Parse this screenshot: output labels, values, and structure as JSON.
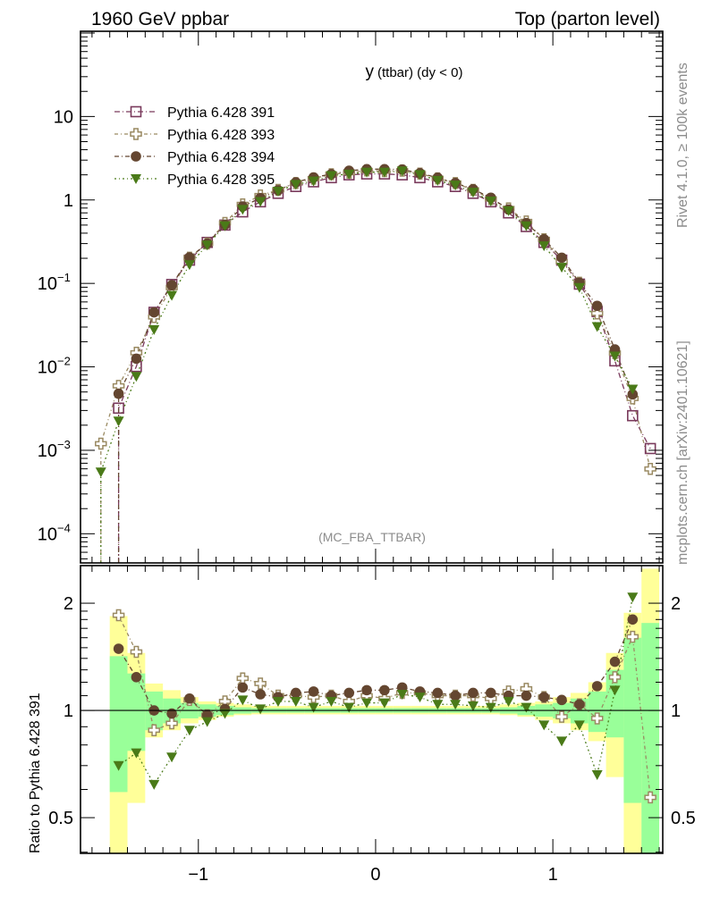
{
  "header": {
    "left": "1960 GeV ppbar",
    "right": "Top (parton level)",
    "side_top": "Rivet 4.1.0, ≥ 100k events",
    "side_bottom": "mcplots.cern.ch [arXiv:2401.10621]",
    "analysis": "(MC_FBA_TTBAR)"
  },
  "chart_data": {
    "type": "line",
    "title_main": "y",
    "title_sub": "(ttbar) (dy < 0)",
    "xlim": [
      -1.665,
      1.62
    ],
    "bin_edges_range": [
      -1.6,
      1.6
    ],
    "x": [
      -1.55,
      -1.45,
      -1.35,
      -1.25,
      -1.15,
      -1.05,
      -0.95,
      -0.85,
      -0.75,
      -0.65,
      -0.55,
      -0.45,
      -0.35,
      -0.25,
      -0.15,
      -0.05,
      0.05,
      0.15,
      0.25,
      0.35,
      0.45,
      0.55,
      0.65,
      0.75,
      0.85,
      0.95,
      1.05,
      1.15,
      1.25,
      1.35,
      1.45,
      1.55
    ],
    "x_ticks": [
      {
        "v": -1,
        "label": "−1"
      },
      {
        "v": 0,
        "label": "0"
      },
      {
        "v": 1,
        "label": "1"
      }
    ],
    "main": {
      "yscale": "log",
      "ylim": [
        4.47e-05,
        105
      ],
      "y_ticks": [
        {
          "v": 10,
          "base": "10",
          "exp": ""
        },
        {
          "v": 1,
          "base": "1",
          "exp": ""
        },
        {
          "v": 0.1,
          "base": "10",
          "exp": "−1"
        },
        {
          "v": 0.01,
          "base": "10",
          "exp": "−2"
        },
        {
          "v": 0.001,
          "base": "10",
          "exp": "−3"
        },
        {
          "v": 0.0001,
          "base": "10",
          "exp": "−4"
        }
      ],
      "reference_values": [
        null,
        0.0032,
        0.0101,
        0.045,
        0.097,
        0.19,
        0.31,
        0.5,
        0.72,
        0.95,
        1.2,
        1.45,
        1.65,
        1.85,
        2.0,
        2.05,
        2.05,
        2.0,
        1.85,
        1.65,
        1.45,
        1.2,
        0.95,
        0.7,
        0.48,
        0.31,
        0.19,
        0.098,
        0.046,
        0.0118,
        0.0026,
        0.00105
      ],
      "edge_values_where_reference_is_zero": {
        "Pythia 6.428 393": 0.0012,
        "Pythia 6.428 394": null,
        "Pythia 6.428 395": 0.00055
      }
    },
    "ratio": {
      "ylabel": "Ratio to Pythia 6.428 391",
      "yscale": "log",
      "ylim": [
        0.397,
        2.55
      ],
      "y_ticks": [
        {
          "v": 0.5,
          "label": "0.5"
        },
        {
          "v": 1,
          "label": "1"
        },
        {
          "v": 2,
          "label": "2"
        }
      ],
      "band_inner": [
        null,
        [
          0.59,
          1.42
        ],
        [
          0.77,
          1.27
        ],
        [
          0.88,
          1.13
        ],
        [
          0.92,
          1.08
        ],
        [
          0.95,
          1.05
        ],
        [
          0.96,
          1.04
        ],
        [
          0.97,
          1.03
        ],
        [
          0.98,
          1.02
        ],
        [
          0.985,
          1.015
        ],
        [
          0.985,
          1.015
        ],
        [
          0.985,
          1.015
        ],
        [
          0.985,
          1.015
        ],
        [
          0.985,
          1.015
        ],
        [
          0.985,
          1.015
        ],
        [
          0.985,
          1.015
        ],
        [
          0.985,
          1.015
        ],
        [
          0.985,
          1.015
        ],
        [
          0.985,
          1.015
        ],
        [
          0.985,
          1.015
        ],
        [
          0.985,
          1.015
        ],
        [
          0.985,
          1.015
        ],
        [
          0.985,
          1.015
        ],
        [
          0.98,
          1.02
        ],
        [
          0.97,
          1.03
        ],
        [
          0.96,
          1.04
        ],
        [
          0.95,
          1.05
        ],
        [
          0.92,
          1.08
        ],
        [
          0.87,
          1.13
        ],
        [
          0.84,
          1.3
        ],
        [
          0.55,
          1.6
        ],
        [
          0.3,
          1.76
        ]
      ],
      "band_outer": [
        null,
        [
          0.3,
          1.84
        ],
        [
          0.55,
          1.45
        ],
        [
          0.84,
          1.19
        ],
        [
          0.88,
          1.14
        ],
        [
          0.92,
          1.09
        ],
        [
          0.94,
          1.06
        ],
        [
          0.96,
          1.05
        ],
        [
          0.97,
          1.04
        ],
        [
          0.975,
          1.03
        ],
        [
          0.975,
          1.03
        ],
        [
          0.975,
          1.03
        ],
        [
          0.975,
          1.03
        ],
        [
          0.975,
          1.03
        ],
        [
          0.975,
          1.03
        ],
        [
          0.975,
          1.03
        ],
        [
          0.975,
          1.03
        ],
        [
          0.975,
          1.03
        ],
        [
          0.975,
          1.03
        ],
        [
          0.975,
          1.03
        ],
        [
          0.975,
          1.03
        ],
        [
          0.975,
          1.03
        ],
        [
          0.975,
          1.03
        ],
        [
          0.97,
          1.04
        ],
        [
          0.96,
          1.05
        ],
        [
          0.94,
          1.06
        ],
        [
          0.92,
          1.09
        ],
        [
          0.88,
          1.12
        ],
        [
          0.82,
          1.2
        ],
        [
          0.65,
          1.45
        ],
        [
          0.35,
          1.88
        ],
        [
          0.3,
          2.5
        ]
      ]
    },
    "series": [
      {
        "name": "Pythia 6.428 391",
        "color": "#7a3a5c",
        "marker": "open-square",
        "dash": "6,3,1,3",
        "reference": true,
        "ratio": [
          null,
          1,
          1,
          1,
          1,
          1,
          1,
          1,
          1,
          1,
          1,
          1,
          1,
          1,
          1,
          1,
          1,
          1,
          1,
          1,
          1,
          1,
          1,
          1,
          1,
          1,
          1,
          1,
          1,
          1,
          1,
          1
        ]
      },
      {
        "name": "Pythia 6.428 393",
        "color": "#9a8a62",
        "marker": "open-cross",
        "dash": "4,3,1,3",
        "ratio": [
          null,
          1.85,
          1.46,
          0.88,
          0.92,
          1.07,
          0.97,
          1.06,
          1.23,
          1.19,
          1.1,
          1.1,
          1.09,
          1.1,
          1.06,
          1.1,
          1.08,
          1.12,
          1.12,
          1.1,
          1.1,
          1.1,
          1.08,
          1.13,
          1.15,
          1.09,
          0.96,
          1.04,
          0.95,
          1.24,
          1.61,
          0.57
        ]
      },
      {
        "name": "Pythia 6.428 394",
        "color": "#644630",
        "marker": "filled-circle",
        "dash": "5,3,1,3",
        "ratio": [
          null,
          1.49,
          1.24,
          1.0,
          0.98,
          1.08,
          0.97,
          1.01,
          1.16,
          1.11,
          1.09,
          1.12,
          1.13,
          1.1,
          1.12,
          1.14,
          1.14,
          1.16,
          1.13,
          1.12,
          1.1,
          1.12,
          1.12,
          1.1,
          1.1,
          1.09,
          1.07,
          1.04,
          1.17,
          1.37,
          1.8,
          null
        ]
      },
      {
        "name": "Pythia 6.428 395",
        "color": "#4a7a18",
        "marker": "filled-triangle-down",
        "dash": "2,3,1,3",
        "ratio": [
          null,
          0.7,
          0.76,
          0.62,
          0.74,
          0.88,
          0.93,
          0.98,
          1.07,
          1.01,
          1.06,
          1.06,
          1.02,
          1.06,
          1.02,
          1.05,
          1.05,
          1.11,
          1.09,
          1.04,
          1.04,
          1.03,
          1.02,
          1.06,
          1.02,
          0.91,
          0.82,
          0.91,
          0.66,
          1.14,
          2.08,
          null
        ]
      }
    ],
    "colors": {
      "band_inner": "#99ff99",
      "band_outer": "#ffff99"
    },
    "legend_placement": "top-left",
    "grid": false
  }
}
